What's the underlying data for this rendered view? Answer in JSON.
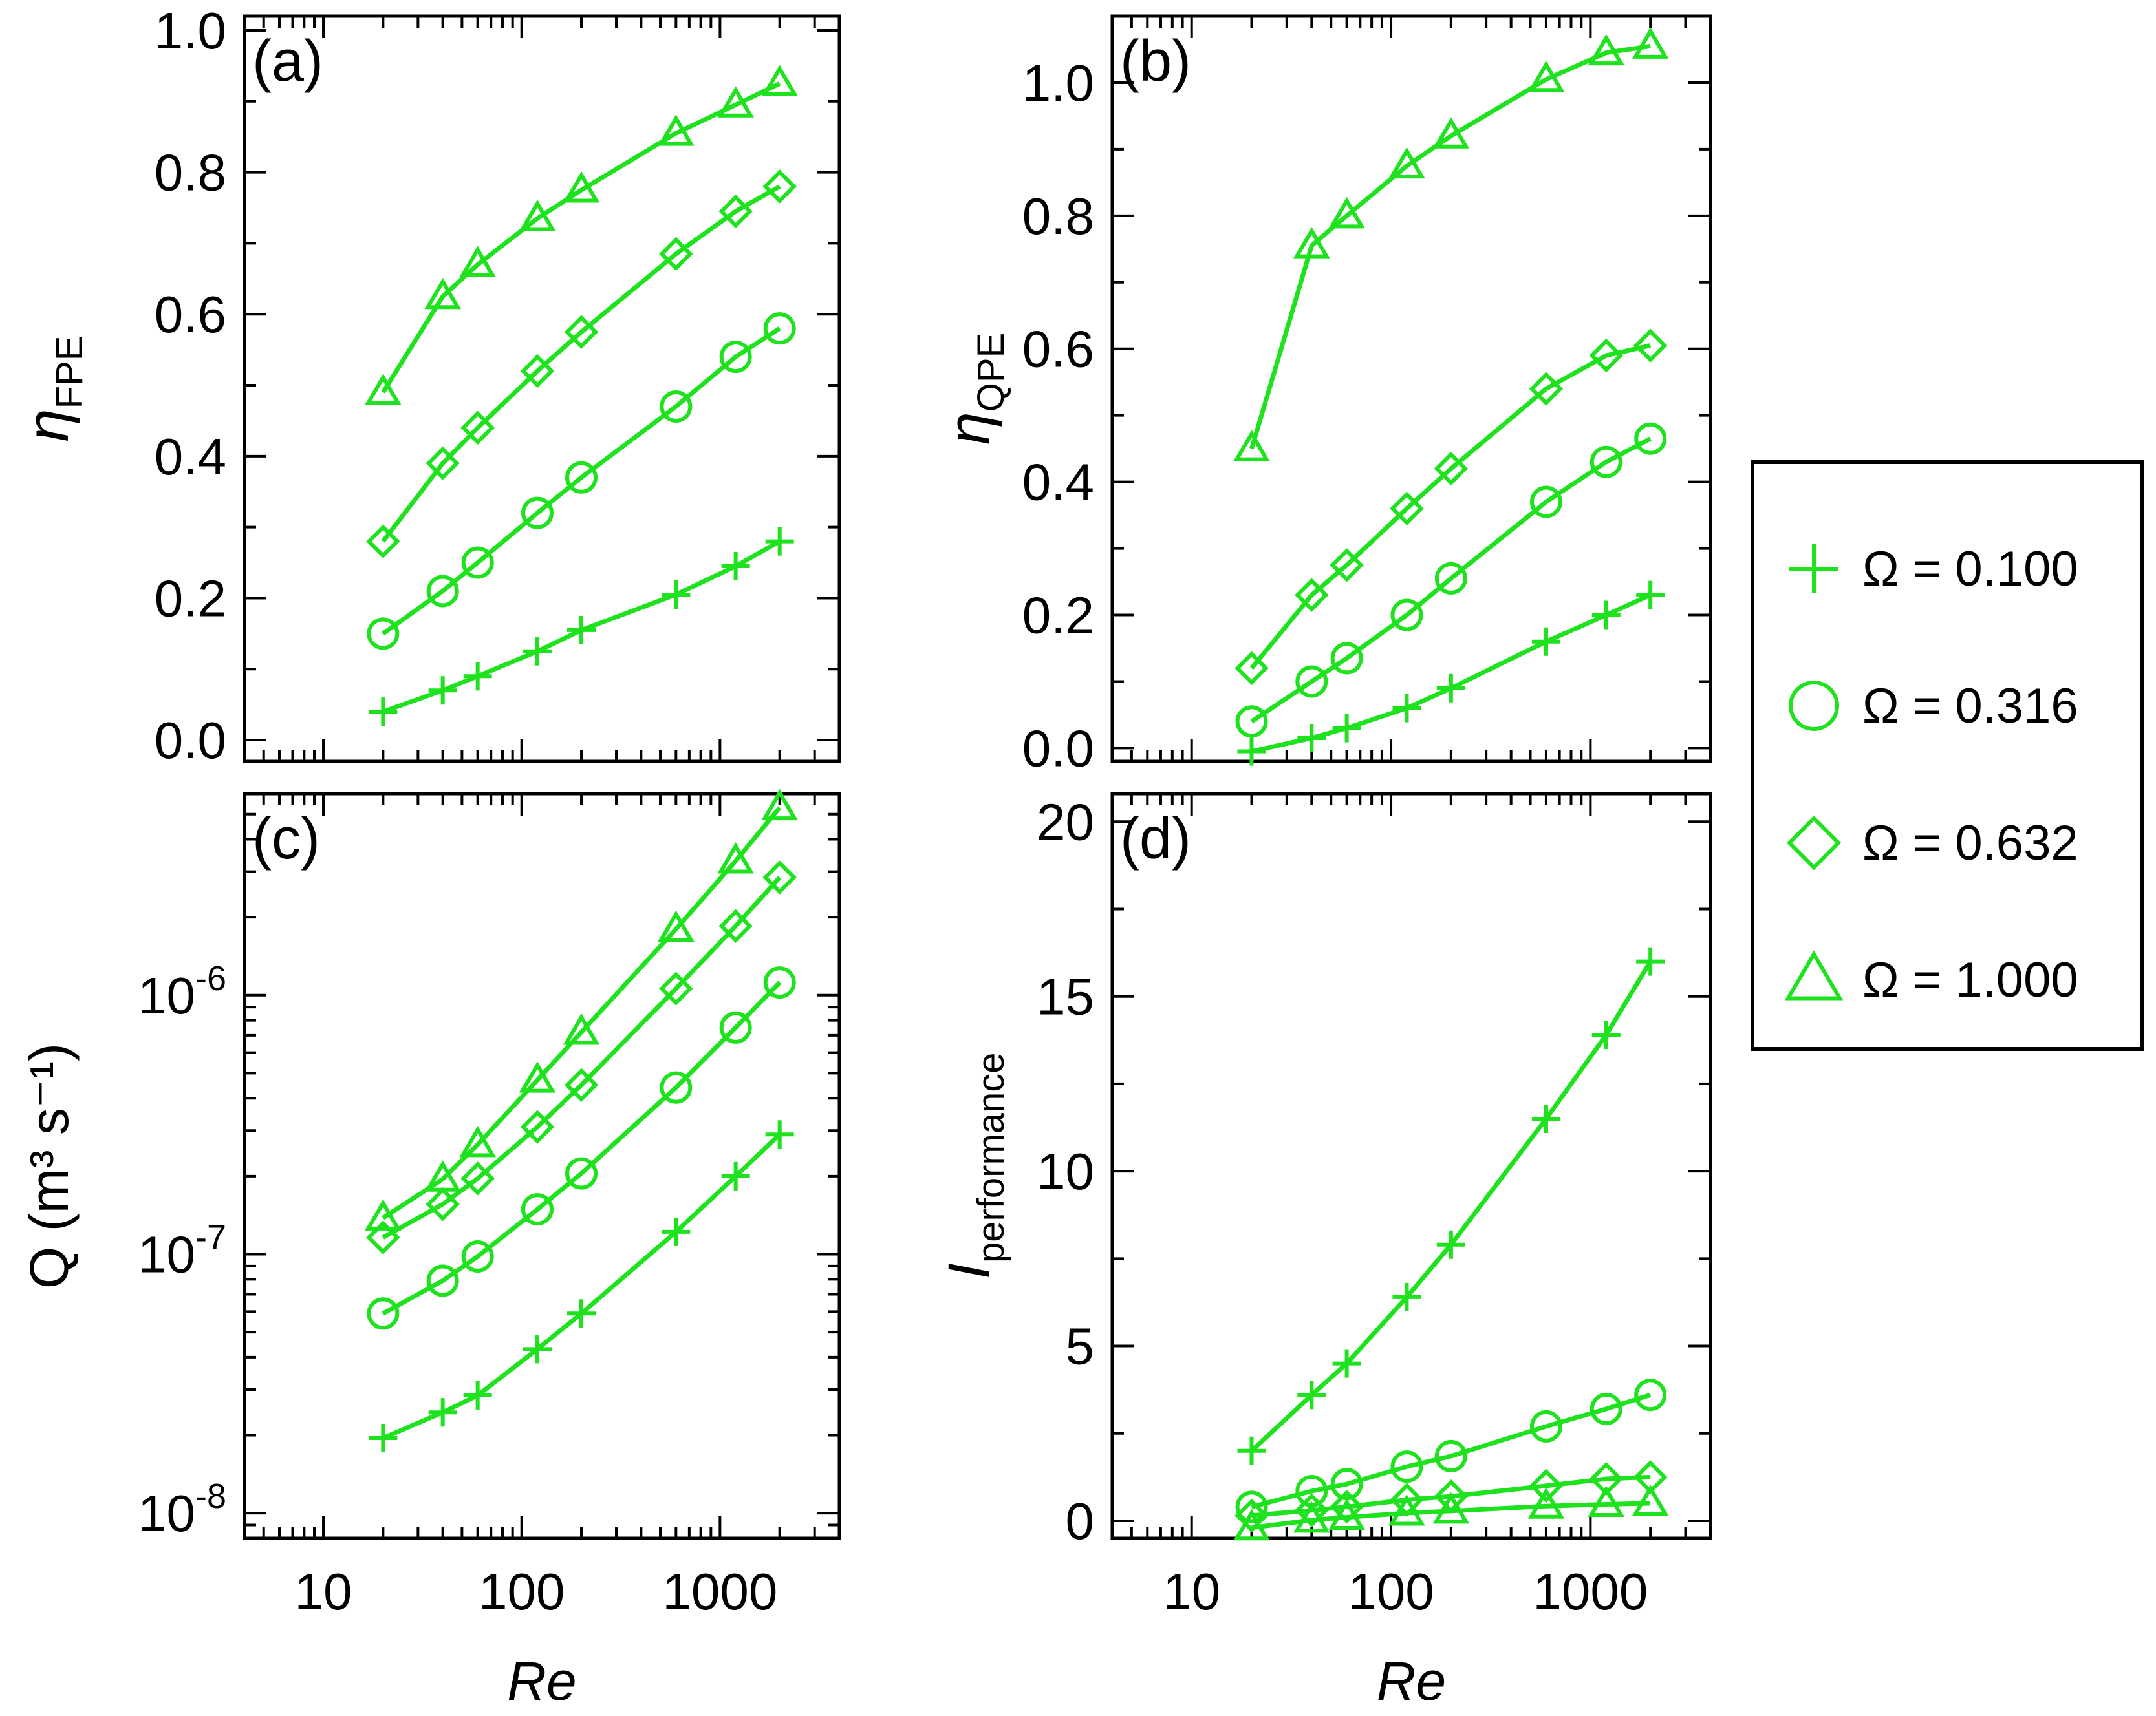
{
  "chart_data": [
    {
      "type": "line",
      "panel_label": "(a)",
      "ylabel_symbol": "η",
      "ylabel_sub": "FPE",
      "xlabel": "",
      "xscale": "log",
      "xlim": [
        4,
        4000
      ],
      "yscale": "linear",
      "ylim": [
        -0.03,
        1.02
      ],
      "yticks": [
        0.0,
        0.2,
        0.4,
        0.6,
        0.8,
        1.0
      ],
      "ytick_labels": [
        "0.0",
        "0.2",
        "0.4",
        "0.6",
        "0.8",
        "1.0"
      ],
      "x": [
        20,
        40,
        60,
        120,
        200,
        600,
        1200,
        2000
      ],
      "series": [
        {
          "name": "Ω = 0.100",
          "marker": "plus",
          "values": [
            0.04,
            0.07,
            0.09,
            0.125,
            0.155,
            0.205,
            0.245,
            0.28
          ]
        },
        {
          "name": "Ω = 0.316",
          "marker": "circle",
          "values": [
            0.15,
            0.21,
            0.25,
            0.32,
            0.37,
            0.47,
            0.54,
            0.58
          ]
        },
        {
          "name": "Ω = 0.632",
          "marker": "diamond",
          "values": [
            0.28,
            0.39,
            0.44,
            0.52,
            0.575,
            0.685,
            0.745,
            0.78
          ]
        },
        {
          "name": "Ω = 1.000",
          "marker": "triangle",
          "values": [
            0.49,
            0.625,
            0.67,
            0.735,
            0.775,
            0.855,
            0.895,
            0.925
          ]
        }
      ]
    },
    {
      "type": "line",
      "panel_label": "(b)",
      "ylabel_symbol": "η",
      "ylabel_sub": "QPE",
      "xlabel": "",
      "xscale": "log",
      "xlim": [
        4,
        4000
      ],
      "yscale": "linear",
      "ylim": [
        -0.02,
        1.1
      ],
      "yticks": [
        0.0,
        0.2,
        0.4,
        0.6,
        0.8,
        1.0
      ],
      "ytick_labels": [
        "0.0",
        "0.2",
        "0.4",
        "0.6",
        "0.8",
        "1.0"
      ],
      "x": [
        20,
        40,
        60,
        120,
        200,
        600,
        1200,
        2000
      ],
      "series": [
        {
          "name": "Ω = 0.100",
          "marker": "plus",
          "values": [
            -0.005,
            0.015,
            0.03,
            0.06,
            0.09,
            0.16,
            0.2,
            0.23
          ]
        },
        {
          "name": "Ω = 0.316",
          "marker": "circle",
          "values": [
            0.04,
            0.1,
            0.135,
            0.2,
            0.255,
            0.37,
            0.43,
            0.465
          ]
        },
        {
          "name": "Ω = 0.632",
          "marker": "diamond",
          "values": [
            0.12,
            0.23,
            0.275,
            0.36,
            0.42,
            0.54,
            0.59,
            0.605
          ]
        },
        {
          "name": "Ω = 1.000",
          "marker": "triangle",
          "values": [
            0.45,
            0.755,
            0.8,
            0.875,
            0.92,
            1.005,
            1.045,
            1.055
          ]
        }
      ]
    },
    {
      "type": "line",
      "panel_label": "(c)",
      "ylabel": "Q (m³ s⁻¹)",
      "xlabel": "Re",
      "xscale": "log",
      "xlim": [
        4,
        4000
      ],
      "yscale": "log",
      "ylim": [
        8e-09,
        6e-06
      ],
      "yticks": [
        1e-08,
        1e-07,
        1e-06
      ],
      "ytick_labels": [
        "10",
        "10",
        "10"
      ],
      "ytick_exponents": [
        "-8",
        "-7",
        "-6"
      ],
      "xticks": [
        10,
        100,
        1000
      ],
      "xtick_labels": [
        "10",
        "100",
        "1000"
      ],
      "x": [
        20,
        40,
        60,
        120,
        200,
        600,
        1200,
        2000
      ],
      "series": [
        {
          "name": "Ω = 0.100",
          "marker": "plus",
          "values": [
            1.95e-08,
            2.45e-08,
            2.85e-08,
            4.3e-08,
            5.9e-08,
            1.22e-07,
            2e-07,
            2.9e-07
          ]
        },
        {
          "name": "Ω = 0.316",
          "marker": "circle",
          "values": [
            5.9e-08,
            7.9e-08,
            9.8e-08,
            1.49e-07,
            2.05e-07,
            4.4e-07,
            7.5e-07,
            1.12e-06
          ]
        },
        {
          "name": "Ω = 0.632",
          "marker": "diamond",
          "values": [
            1.16e-07,
            1.56e-07,
            1.96e-07,
            3.1e-07,
            4.5e-07,
            1.06e-06,
            1.85e-06,
            2.85e-06
          ]
        },
        {
          "name": "Ω = 1.000",
          "marker": "triangle",
          "values": [
            1.38e-07,
            1.95e-07,
            2.65e-07,
            4.7e-07,
            7.2e-07,
            1.8e-06,
            3.3e-06,
            5.3e-06
          ]
        }
      ]
    },
    {
      "type": "line",
      "panel_label": "(d)",
      "ylabel_symbol": "I",
      "ylabel_sub": "performance",
      "xlabel": "Re",
      "xscale": "log",
      "xlim": [
        4,
        4000
      ],
      "yscale": "linear",
      "ylim": [
        -0.5,
        20.8
      ],
      "yticks": [
        0,
        5,
        10,
        15,
        20
      ],
      "ytick_labels": [
        "0",
        "5",
        "10",
        "15",
        "20"
      ],
      "xticks": [
        10,
        100,
        1000
      ],
      "xtick_labels": [
        "10",
        "100",
        "1000"
      ],
      "x": [
        20,
        40,
        60,
        120,
        200,
        600,
        1200,
        2000
      ],
      "series": [
        {
          "name": "Ω = 0.100",
          "marker": "plus",
          "values": [
            2.0,
            3.6,
            4.5,
            6.4,
            7.9,
            11.5,
            13.9,
            16.0
          ]
        },
        {
          "name": "Ω = 0.316",
          "marker": "circle",
          "values": [
            0.4,
            0.85,
            1.05,
            1.55,
            1.85,
            2.7,
            3.2,
            3.6
          ]
        },
        {
          "name": "Ω = 0.632",
          "marker": "diamond",
          "values": [
            0.15,
            0.3,
            0.4,
            0.6,
            0.7,
            1.0,
            1.2,
            1.25
          ]
        },
        {
          "name": "Ω = 1.000",
          "marker": "triangle",
          "values": [
            -0.2,
            0.02,
            0.1,
            0.22,
            0.28,
            0.42,
            0.47,
            0.5
          ]
        }
      ]
    }
  ],
  "legend": {
    "placement": "right",
    "entries": [
      {
        "marker": "plus",
        "label": "Ω = 0.100"
      },
      {
        "marker": "circle",
        "label": "Ω = 0.316"
      },
      {
        "marker": "diamond",
        "label": "Ω = 0.632"
      },
      {
        "marker": "triangle",
        "label": "Ω = 1.000"
      }
    ]
  },
  "style": {
    "series_color": "#1de21d"
  }
}
